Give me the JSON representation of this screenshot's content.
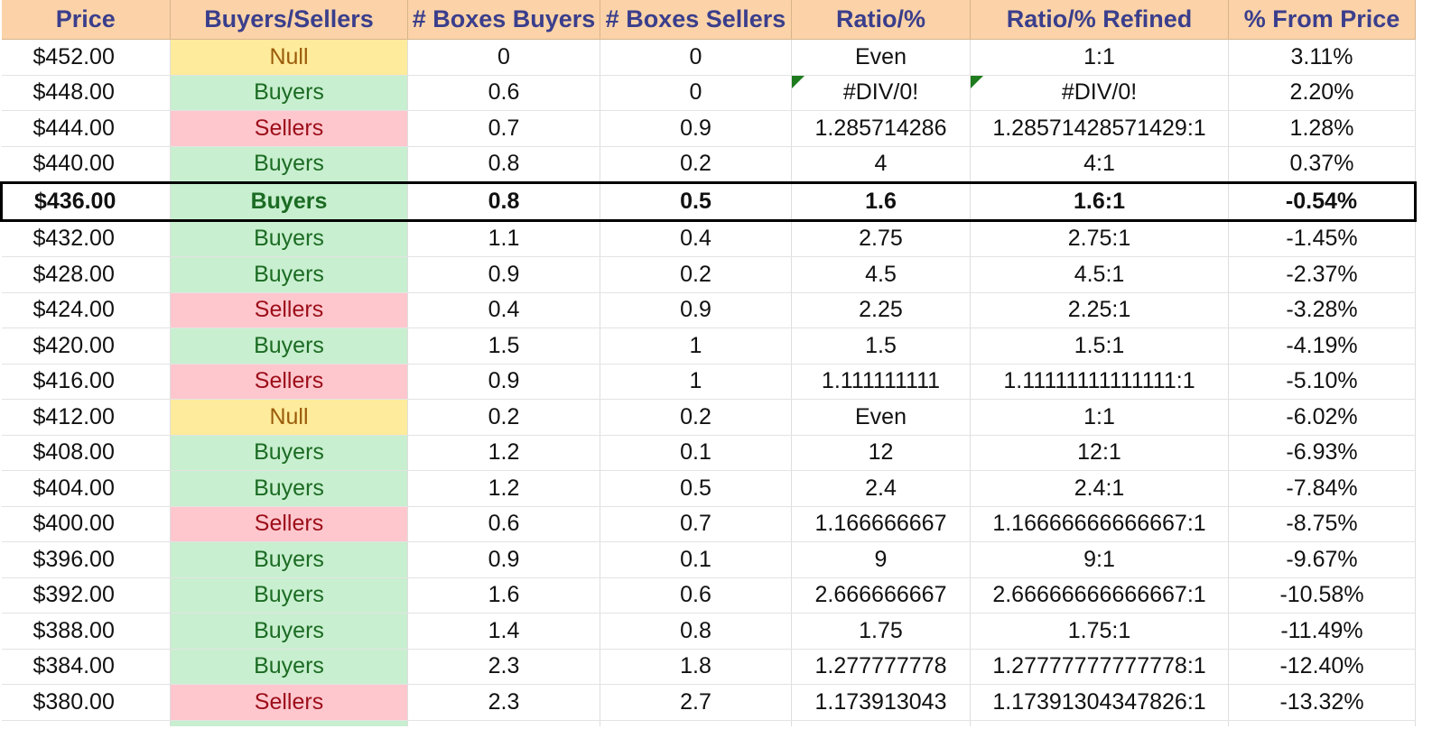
{
  "headers": [
    "Price",
    "Buyers/Sellers",
    "# Boxes Buyers",
    "# Boxes Sellers",
    "Ratio/%",
    "Ratio/% Refined",
    "% From Price"
  ],
  "highlight_price": "$436.00",
  "colors": {
    "buyers_bg": "#c8efcf",
    "sellers_bg": "#fec7ce",
    "null_bg": "#feeb9b",
    "header_bg": "#fcd3a8"
  },
  "rows": [
    {
      "price": "$452.00",
      "bs": "Null",
      "buyers": "0",
      "sellers": "0",
      "ratio": "Even",
      "refined": "1:1",
      "pct": "3.11%"
    },
    {
      "price": "$448.00",
      "bs": "Buyers",
      "buyers": "0.6",
      "sellers": "0",
      "ratio": "#DIV/0!",
      "refined": "#DIV/0!",
      "pct": "2.20%"
    },
    {
      "price": "$444.00",
      "bs": "Sellers",
      "buyers": "0.7",
      "sellers": "0.9",
      "ratio": "1.285714286",
      "refined": "1.28571428571429:1",
      "pct": "1.28%"
    },
    {
      "price": "$440.00",
      "bs": "Buyers",
      "buyers": "0.8",
      "sellers": "0.2",
      "ratio": "4",
      "refined": "4:1",
      "pct": "0.37%"
    },
    {
      "price": "$436.00",
      "bs": "Buyers",
      "buyers": "0.8",
      "sellers": "0.5",
      "ratio": "1.6",
      "refined": "1.6:1",
      "pct": "-0.54%"
    },
    {
      "price": "$432.00",
      "bs": "Buyers",
      "buyers": "1.1",
      "sellers": "0.4",
      "ratio": "2.75",
      "refined": "2.75:1",
      "pct": "-1.45%"
    },
    {
      "price": "$428.00",
      "bs": "Buyers",
      "buyers": "0.9",
      "sellers": "0.2",
      "ratio": "4.5",
      "refined": "4.5:1",
      "pct": "-2.37%"
    },
    {
      "price": "$424.00",
      "bs": "Sellers",
      "buyers": "0.4",
      "sellers": "0.9",
      "ratio": "2.25",
      "refined": "2.25:1",
      "pct": "-3.28%"
    },
    {
      "price": "$420.00",
      "bs": "Buyers",
      "buyers": "1.5",
      "sellers": "1",
      "ratio": "1.5",
      "refined": "1.5:1",
      "pct": "-4.19%"
    },
    {
      "price": "$416.00",
      "bs": "Sellers",
      "buyers": "0.9",
      "sellers": "1",
      "ratio": "1.111111111",
      "refined": "1.11111111111111:1",
      "pct": "-5.10%"
    },
    {
      "price": "$412.00",
      "bs": "Null",
      "buyers": "0.2",
      "sellers": "0.2",
      "ratio": "Even",
      "refined": "1:1",
      "pct": "-6.02%"
    },
    {
      "price": "$408.00",
      "bs": "Buyers",
      "buyers": "1.2",
      "sellers": "0.1",
      "ratio": "12",
      "refined": "12:1",
      "pct": "-6.93%"
    },
    {
      "price": "$404.00",
      "bs": "Buyers",
      "buyers": "1.2",
      "sellers": "0.5",
      "ratio": "2.4",
      "refined": "2.4:1",
      "pct": "-7.84%"
    },
    {
      "price": "$400.00",
      "bs": "Sellers",
      "buyers": "0.6",
      "sellers": "0.7",
      "ratio": "1.166666667",
      "refined": "1.16666666666667:1",
      "pct": "-8.75%"
    },
    {
      "price": "$396.00",
      "bs": "Buyers",
      "buyers": "0.9",
      "sellers": "0.1",
      "ratio": "9",
      "refined": "9:1",
      "pct": "-9.67%"
    },
    {
      "price": "$392.00",
      "bs": "Buyers",
      "buyers": "1.6",
      "sellers": "0.6",
      "ratio": "2.666666667",
      "refined": "2.66666666666667:1",
      "pct": "-10.58%"
    },
    {
      "price": "$388.00",
      "bs": "Buyers",
      "buyers": "1.4",
      "sellers": "0.8",
      "ratio": "1.75",
      "refined": "1.75:1",
      "pct": "-11.49%"
    },
    {
      "price": "$384.00",
      "bs": "Buyers",
      "buyers": "2.3",
      "sellers": "1.8",
      "ratio": "1.277777778",
      "refined": "1.27777777777778:1",
      "pct": "-12.40%"
    },
    {
      "price": "$380.00",
      "bs": "Sellers",
      "buyers": "2.3",
      "sellers": "2.7",
      "ratio": "1.173913043",
      "refined": "1.17391304347826:1",
      "pct": "-13.32%"
    }
  ]
}
